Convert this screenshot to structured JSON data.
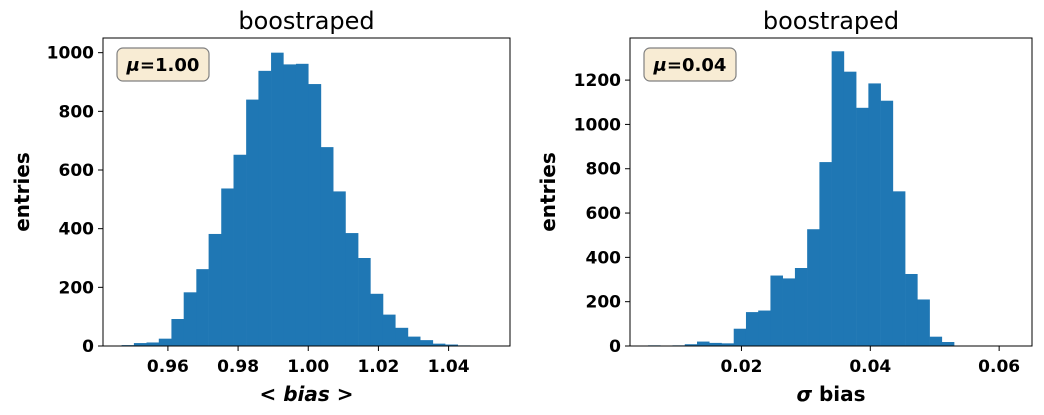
{
  "colors": {
    "bar": "#1f77b4",
    "box_fill": "#f8ecd4",
    "box_edge": "#808080"
  },
  "chart_data": [
    {
      "type": "bar",
      "title": "boostraped",
      "xlabel": "< bias >",
      "ylabel": "entries",
      "annotation": "μ=1.00",
      "annotation_position": "top-left",
      "grid": false,
      "xlim": [
        0.9415,
        1.0575
      ],
      "ylim": [
        0,
        1050
      ],
      "xticks": [
        0.96,
        0.98,
        1.0,
        1.02,
        1.04
      ],
      "xtick_labels": [
        "0.96",
        "0.98",
        "1.00",
        "1.02",
        "1.04"
      ],
      "yticks": [
        0,
        200,
        400,
        600,
        800,
        1000
      ],
      "ytick_labels": [
        "0",
        "200",
        "400",
        "600",
        "800",
        "1000"
      ],
      "bin_edges": [
        0.9468,
        0.9503,
        0.9539,
        0.9574,
        0.961,
        0.9645,
        0.9681,
        0.9716,
        0.9752,
        0.9787,
        0.9823,
        0.9858,
        0.9894,
        0.9929,
        0.9965,
        1.0,
        1.0036,
        1.0071,
        1.0106,
        1.0142,
        1.0177,
        1.0213,
        1.0248,
        1.0284,
        1.0319,
        1.0355,
        1.039,
        1.0426,
        1.0461,
        1.0497,
        1.0532
      ],
      "values": [
        3,
        10,
        12,
        25,
        92,
        183,
        262,
        382,
        537,
        652,
        840,
        938,
        1000,
        960,
        962,
        893,
        678,
        527,
        385,
        300,
        178,
        107,
        62,
        32,
        20,
        8,
        5,
        2,
        1,
        0
      ]
    },
    {
      "type": "bar",
      "title": "boostraped",
      "xlabel": "σ bias",
      "ylabel": "entries",
      "annotation": "μ=0.04",
      "annotation_position": "top-left",
      "grid": false,
      "xlim": [
        0.0027,
        0.0651
      ],
      "ylim": [
        0,
        1390
      ],
      "xticks": [
        0.02,
        0.04,
        0.06
      ],
      "xtick_labels": [
        "0.02",
        "0.04",
        "0.06"
      ],
      "yticks": [
        0,
        200,
        400,
        600,
        800,
        1000,
        1200
      ],
      "ytick_labels": [
        "0",
        "200",
        "400",
        "600",
        "800",
        "1000",
        "1200"
      ],
      "bin_edges": [
        0.0055,
        0.0074,
        0.0093,
        0.0112,
        0.0131,
        0.015,
        0.0169,
        0.0188,
        0.0207,
        0.0226,
        0.0245,
        0.0264,
        0.0283,
        0.0302,
        0.0321,
        0.034,
        0.0359,
        0.0378,
        0.0397,
        0.0416,
        0.0435,
        0.0454,
        0.0473,
        0.0492,
        0.0511,
        0.053,
        0.0549,
        0.0568,
        0.0587,
        0.0606,
        0.0625
      ],
      "values": [
        3,
        2,
        3,
        8,
        20,
        14,
        12,
        78,
        153,
        160,
        318,
        305,
        352,
        527,
        830,
        1330,
        1238,
        1075,
        1185,
        1107,
        698,
        325,
        210,
        42,
        18,
        0,
        0,
        0,
        0,
        0
      ]
    }
  ]
}
